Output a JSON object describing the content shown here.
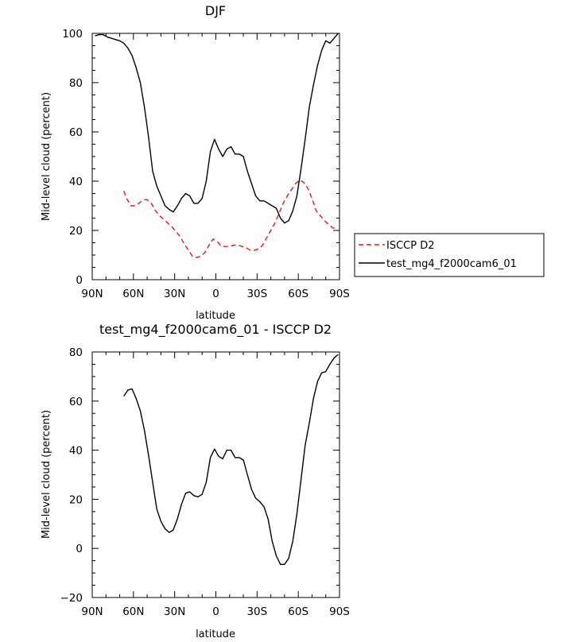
{
  "chart_data": [
    {
      "type": "line",
      "title": "DJF",
      "xlabel": "latitude",
      "ylabel": "Mid-level cloud (percent)",
      "xlim": [
        90,
        -90
      ],
      "ylim": [
        0,
        100
      ],
      "x_ticks": [
        90,
        60,
        30,
        0,
        -30,
        -60,
        -90
      ],
      "x_tick_labels": [
        "90N",
        "60N",
        "30N",
        "0",
        "30S",
        "60S",
        "90S"
      ],
      "y_ticks": [
        0,
        20,
        40,
        60,
        80,
        100
      ],
      "y_tick_labels": [
        "0",
        "20",
        "40",
        "60",
        "80",
        "100"
      ],
      "legend": {
        "placement": "right",
        "entries": [
          "ISCCP D2",
          "test_mg4_f2000cam6_01"
        ]
      },
      "series": [
        {
          "name": "ISCCP D2",
          "color": "#e8191b",
          "dash": "dashed",
          "x": [
            67,
            65,
            62,
            59,
            56,
            53,
            50,
            47,
            44,
            41,
            38,
            35,
            32,
            29,
            26,
            23,
            20,
            17,
            14,
            11,
            8,
            5,
            2,
            -1,
            -4,
            -7,
            -10,
            -13,
            -16,
            -19,
            -22,
            -25,
            -28,
            -31,
            -34,
            -37,
            -40,
            -43,
            -46,
            -49,
            -52,
            -55,
            -58,
            -61,
            -64,
            -67,
            -70,
            -73,
            -76,
            -79,
            -82,
            -85,
            -88
          ],
          "y": [
            36,
            33,
            30,
            30,
            31,
            32.5,
            32.5,
            31,
            28,
            26,
            24.5,
            23,
            21.5,
            19.5,
            17.5,
            14.5,
            12,
            9.5,
            9,
            9.5,
            11,
            14,
            16.5,
            15.5,
            13.5,
            13.5,
            13.5,
            14,
            14,
            13.5,
            13,
            12,
            12,
            12.5,
            14,
            17,
            20,
            23,
            27,
            31,
            34,
            36.5,
            39,
            40.5,
            39.5,
            37,
            33,
            28,
            26,
            24,
            22.5,
            21,
            21
          ]
        },
        {
          "name": "test_mg4_f2000cam6_01",
          "color": "#000000",
          "dash": "solid",
          "x": [
            88,
            85,
            82,
            79,
            76,
            73,
            70,
            67,
            64,
            61,
            58,
            55,
            52,
            49,
            46,
            43,
            40,
            37,
            34,
            31,
            28,
            25,
            22,
            19,
            16,
            13,
            10,
            7,
            4,
            1,
            -2,
            -5,
            -8,
            -11,
            -14,
            -17,
            -20,
            -23,
            -26,
            -29,
            -32,
            -35,
            -38,
            -41,
            -44,
            -47,
            -50,
            -53,
            -56,
            -59,
            -62,
            -65,
            -68,
            -71,
            -74,
            -77,
            -80,
            -83,
            -86,
            -89
          ],
          "y": [
            99,
            99.5,
            99.5,
            98.5,
            98,
            97.5,
            97,
            96,
            94,
            91,
            86,
            80,
            70,
            58,
            44,
            38,
            34,
            30,
            28.5,
            27.5,
            30,
            33,
            35,
            34,
            31,
            31,
            33,
            40,
            52,
            57,
            53,
            50,
            53,
            54,
            51,
            51,
            50,
            44,
            39,
            34,
            32,
            32,
            31,
            30,
            29,
            25,
            23,
            24,
            28,
            34,
            45,
            57,
            70,
            79,
            87,
            93,
            97,
            96,
            98,
            100
          ]
        }
      ]
    },
    {
      "type": "line",
      "title": "test_mg4_f2000cam6_01 - ISCCP D2",
      "xlabel": "latitude",
      "ylabel": "Mid-level cloud (percent)",
      "xlim": [
        90,
        -90
      ],
      "ylim": [
        -20,
        80
      ],
      "x_ticks": [
        90,
        60,
        30,
        0,
        -30,
        -60,
        -90
      ],
      "x_tick_labels": [
        "90N",
        "60N",
        "30N",
        "0",
        "30S",
        "60S",
        "90S"
      ],
      "y_ticks": [
        -20,
        0,
        20,
        40,
        60,
        80
      ],
      "y_tick_labels": [
        "-20",
        "0",
        "20",
        "40",
        "60",
        "80"
      ],
      "series": [
        {
          "color": "#000000",
          "dash": "solid",
          "x": [
            67,
            64,
            61,
            58,
            55,
            52,
            49,
            46,
            43,
            40,
            37,
            34,
            31,
            28,
            25,
            22,
            19,
            16,
            13,
            10,
            7,
            4,
            1,
            -2,
            -5,
            -8,
            -11,
            -14,
            -17,
            -20,
            -23,
            -26,
            -29,
            -32,
            -35,
            -38,
            -41,
            -44,
            -47,
            -50,
            -53,
            -56,
            -59,
            -62,
            -65,
            -68,
            -71,
            -74,
            -77,
            -80,
            -83,
            -86,
            -89
          ],
          "y": [
            62,
            64.5,
            65,
            61,
            56,
            48,
            38,
            27,
            16,
            11,
            8,
            6.5,
            7.5,
            12,
            18,
            22.5,
            23,
            21.5,
            21,
            22,
            27,
            37,
            40.5,
            37.5,
            36.5,
            40,
            40,
            37,
            37,
            36,
            30,
            24,
            20.5,
            19,
            17,
            12,
            3,
            -3,
            -6.5,
            -6.5,
            -4,
            3,
            14,
            28,
            42,
            51,
            61,
            68,
            71.5,
            72,
            75,
            77.5,
            79
          ]
        }
      ]
    }
  ]
}
